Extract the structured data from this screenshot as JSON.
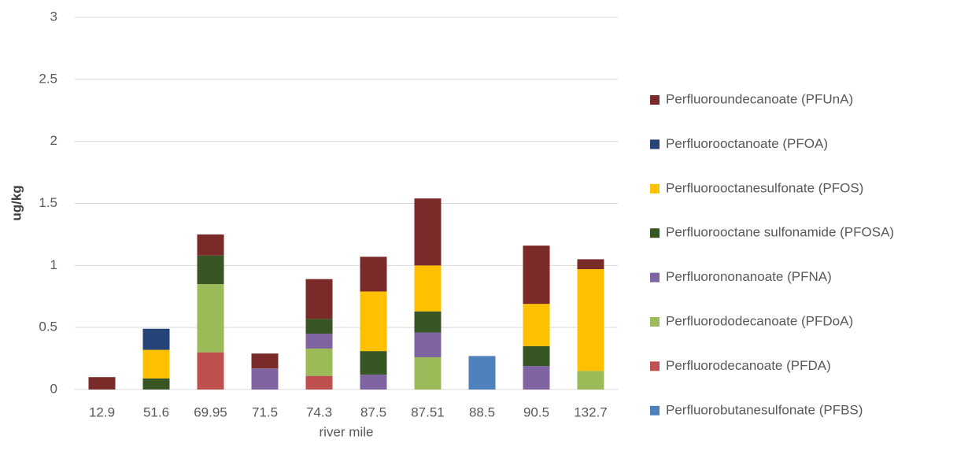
{
  "chart_data": {
    "type": "stacked_bar",
    "categories": [
      "12.9",
      "51.6",
      "69.95",
      "71.5",
      "74.3",
      "87.5",
      "87.51",
      "88.5",
      "90.5",
      "132.7"
    ],
    "x_label": "river mile",
    "y_label": "ug/kg",
    "ylim": [
      0,
      3
    ],
    "yticks": [
      0,
      0.5,
      1,
      1.5,
      2,
      2.5,
      3
    ],
    "grid": true,
    "series": [
      {
        "name": "Perfluorobutanesulfonate (PFBS)",
        "color": "#4f81bd",
        "values": [
          0,
          0,
          0,
          0,
          0,
          0,
          0,
          0.27,
          0,
          0
        ]
      },
      {
        "name": "Perfluorodecanoate (PFDA)",
        "color": "#c0504d",
        "values": [
          0,
          0,
          0.3,
          0,
          0.11,
          0,
          0,
          0,
          0,
          0
        ]
      },
      {
        "name": "Perfluorododecanoate (PFDoA)",
        "color": "#9bbb59",
        "values": [
          0,
          0,
          0.55,
          0,
          0.22,
          0,
          0.26,
          0,
          0,
          0.15
        ]
      },
      {
        "name": "Perfluorononanoate (PFNA)",
        "color": "#8064a2",
        "values": [
          0,
          0,
          0,
          0.17,
          0.12,
          0.12,
          0.2,
          0,
          0.19,
          0
        ]
      },
      {
        "name": "Perfluorooctane sulfonamide (PFOSA)",
        "color": "#375623",
        "values": [
          0,
          0.09,
          0.23,
          0,
          0.12,
          0.19,
          0.17,
          0,
          0.16,
          0
        ]
      },
      {
        "name": "Perfluorooctanesulfonate (PFOS)",
        "color": "#ffc000",
        "values": [
          0,
          0.23,
          0,
          0,
          0,
          0.48,
          0.37,
          0,
          0.34,
          0.82
        ]
      },
      {
        "name": "Perfluorooctanoate (PFOA)",
        "color": "#264478",
        "values": [
          0,
          0.17,
          0,
          0,
          0,
          0,
          0,
          0,
          0,
          0
        ]
      },
      {
        "name": "Perfluoroundecanoate (PFUnA)",
        "color": "#7b2a2a",
        "values": [
          0.1,
          0,
          0.17,
          0.12,
          0.32,
          0.28,
          0.54,
          0,
          0.47,
          0.08
        ]
      }
    ]
  }
}
